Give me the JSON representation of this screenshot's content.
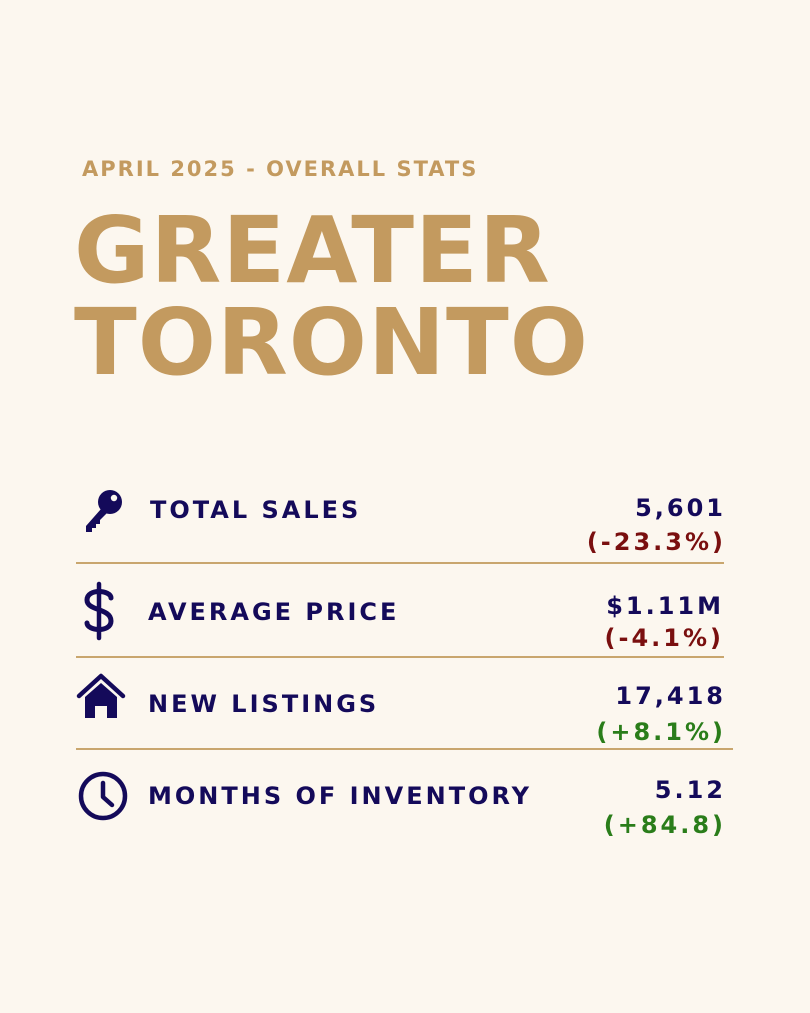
{
  "header": {
    "subtitle": "APRIL 2025 - OVERALL STATS",
    "title_line1": "GREATER",
    "title_line2": "TORONTO"
  },
  "stats": [
    {
      "icon": "key-icon",
      "label": "TOTAL SALES",
      "value": "5,601",
      "change": "(-23.3%)",
      "trend": "negative"
    },
    {
      "icon": "dollar-icon",
      "label": "AVERAGE PRICE",
      "value": "$1.11M",
      "change": "(-4.1%)",
      "trend": "negative"
    },
    {
      "icon": "house-icon",
      "label": "NEW LISTINGS",
      "value": "17,418",
      "change": "(+8.1%)",
      "trend": "positive"
    },
    {
      "icon": "clock-icon",
      "label": "MONTHS OF INVENTORY",
      "value": "5.12",
      "change": "(+84.8)",
      "trend": "positive"
    }
  ],
  "colors": {
    "background": "#fcf7ef",
    "gold": "#c39a5f",
    "navy": "#140a5a",
    "negative": "#7a0f0f",
    "positive": "#2a7d1a"
  }
}
